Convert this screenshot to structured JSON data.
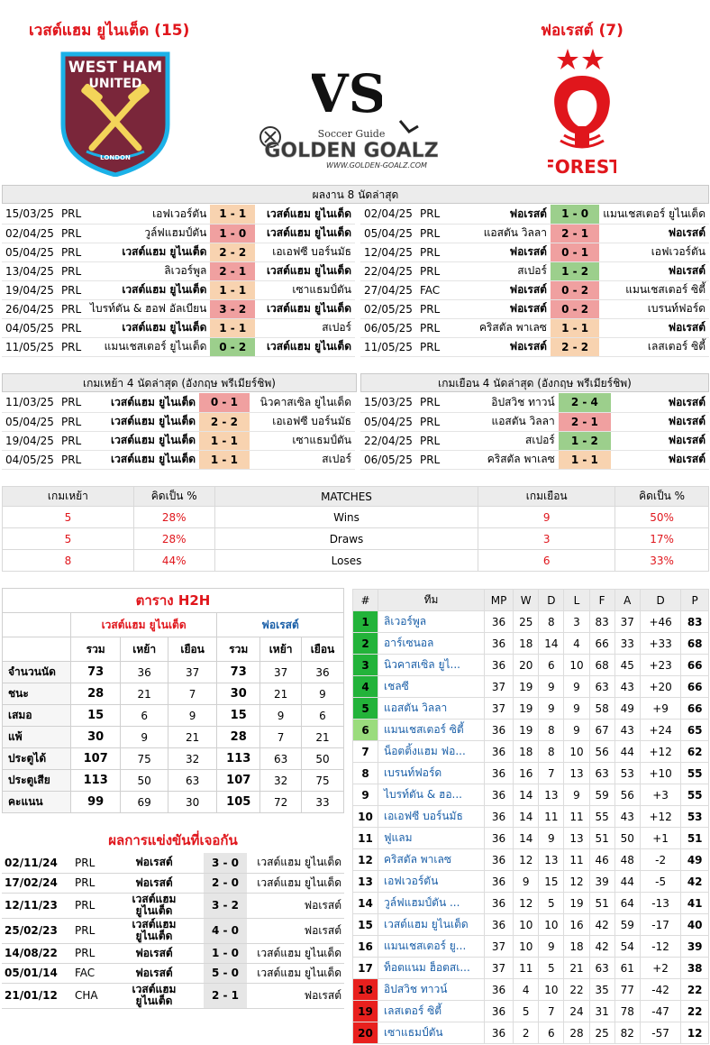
{
  "header": {
    "home_title": "เวสต์แฮม ยูไนเต็ด (15)",
    "away_title": "ฟอเรสต์ (7)",
    "vs": "VS",
    "site_logo_top": "Soccer Guide",
    "site_logo_main": "GOLDEN GOALZ",
    "site_logo_url": "WWW.GOLDEN-GOALZ.COM",
    "home_crest_text_1": "WEST HAM",
    "home_crest_text_2": "UNITED",
    "home_crest_text_3": "LONDON",
    "away_crest_text": "FOREST"
  },
  "colors": {
    "accent_red": "#e0161c",
    "win": "#9ccf8c",
    "draw": "#f8d3b0",
    "loss": "#f0a0a0",
    "west_ham": "#7a263a",
    "forest": "#e0161c"
  },
  "last8": {
    "title": "ผลงาน 8 นัดล่าสุด",
    "home": [
      {
        "date": "15/03/25",
        "comp": "PRL",
        "home": "เอฟเวอร์ตัน",
        "score": "1 - 1",
        "away": "เวสต์แฮม ยูไนเต็ด",
        "res": "d",
        "hb": false,
        "ab": true
      },
      {
        "date": "02/04/25",
        "comp": "PRL",
        "home": "วูล์ฟแฮมป์ตัน",
        "score": "1 - 0",
        "away": "เวสต์แฮม ยูไนเต็ด",
        "res": "l",
        "hb": false,
        "ab": true
      },
      {
        "date": "05/04/25",
        "comp": "PRL",
        "home": "เวสต์แฮม ยูไนเต็ด",
        "score": "2 - 2",
        "away": "เอเอฟซี บอร์นมัธ",
        "res": "d",
        "hb": true,
        "ab": false
      },
      {
        "date": "13/04/25",
        "comp": "PRL",
        "home": "ลิเวอร์พูล",
        "score": "2 - 1",
        "away": "เวสต์แฮม ยูไนเต็ด",
        "res": "l",
        "hb": false,
        "ab": true
      },
      {
        "date": "19/04/25",
        "comp": "PRL",
        "home": "เวสต์แฮม ยูไนเต็ด",
        "score": "1 - 1",
        "away": "เซาแธมป์ตัน",
        "res": "d",
        "hb": true,
        "ab": false
      },
      {
        "date": "26/04/25",
        "comp": "PRL",
        "home": "ไบรท์ตัน & ฮอฟ อัลเบียน",
        "score": "3 - 2",
        "away": "เวสต์แฮม ยูไนเต็ด",
        "res": "l",
        "hb": false,
        "ab": true
      },
      {
        "date": "04/05/25",
        "comp": "PRL",
        "home": "เวสต์แฮม ยูไนเต็ด",
        "score": "1 - 1",
        "away": "สเปอร์",
        "res": "d",
        "hb": true,
        "ab": false
      },
      {
        "date": "11/05/25",
        "comp": "PRL",
        "home": "แมนเชสเตอร์ ยูไนเต็ด",
        "score": "0 - 2",
        "away": "เวสต์แฮม ยูไนเต็ด",
        "res": "w",
        "hb": false,
        "ab": true
      }
    ],
    "away": [
      {
        "date": "02/04/25",
        "comp": "PRL",
        "home": "ฟอเรสต์",
        "score": "1 - 0",
        "away": "แมนเชสเตอร์ ยูไนเต็ด",
        "res": "w",
        "hb": true,
        "ab": false
      },
      {
        "date": "05/04/25",
        "comp": "PRL",
        "home": "แอสตัน วิลลา",
        "score": "2 - 1",
        "away": "ฟอเรสต์",
        "res": "l",
        "hb": false,
        "ab": true
      },
      {
        "date": "12/04/25",
        "comp": "PRL",
        "home": "ฟอเรสต์",
        "score": "0 - 1",
        "away": "เอฟเวอร์ตัน",
        "res": "l",
        "hb": true,
        "ab": false
      },
      {
        "date": "22/04/25",
        "comp": "PRL",
        "home": "สเปอร์",
        "score": "1 - 2",
        "away": "ฟอเรสต์",
        "res": "w",
        "hb": false,
        "ab": true
      },
      {
        "date": "27/04/25",
        "comp": "FAC",
        "home": "ฟอเรสต์",
        "score": "0 - 2",
        "away": "แมนเชสเตอร์ ซิตี้",
        "res": "l",
        "hb": true,
        "ab": false
      },
      {
        "date": "02/05/25",
        "comp": "PRL",
        "home": "ฟอเรสต์",
        "score": "0 - 2",
        "away": "เบรนท์ฟอร์ด",
        "res": "l",
        "hb": true,
        "ab": false
      },
      {
        "date": "06/05/25",
        "comp": "PRL",
        "home": "คริสตัล พาเลซ",
        "score": "1 - 1",
        "away": "ฟอเรสต์",
        "res": "d",
        "hb": false,
        "ab": true
      },
      {
        "date": "11/05/25",
        "comp": "PRL",
        "home": "ฟอเรสต์",
        "score": "2 - 2",
        "away": "เลสเตอร์ ซิตี้",
        "res": "d",
        "hb": true,
        "ab": false
      }
    ]
  },
  "last4": {
    "home_title": "เกมเหย้า 4 นัดล่าสุด (อังกฤษ พรีเมียร์ชิพ)",
    "away_title": "เกมเยือน 4 นัดล่าสุด (อังกฤษ พรีเมียร์ชิพ)",
    "home": [
      {
        "date": "11/03/25",
        "comp": "PRL",
        "home": "เวสต์แฮม ยูไนเต็ด",
        "score": "0 - 1",
        "away": "นิวคาสเซิล ยูไนเต็ด",
        "res": "l",
        "hb": true,
        "ab": false
      },
      {
        "date": "05/04/25",
        "comp": "PRL",
        "home": "เวสต์แฮม ยูไนเต็ด",
        "score": "2 - 2",
        "away": "เอเอฟซี บอร์นมัธ",
        "res": "d",
        "hb": true,
        "ab": false
      },
      {
        "date": "19/04/25",
        "comp": "PRL",
        "home": "เวสต์แฮม ยูไนเต็ด",
        "score": "1 - 1",
        "away": "เซาแธมป์ตัน",
        "res": "d",
        "hb": true,
        "ab": false
      },
      {
        "date": "04/05/25",
        "comp": "PRL",
        "home": "เวสต์แฮม ยูไนเต็ด",
        "score": "1 - 1",
        "away": "สเปอร์",
        "res": "d",
        "hb": true,
        "ab": false
      }
    ],
    "away": [
      {
        "date": "15/03/25",
        "comp": "PRL",
        "home": "อิปสวิช ทาวน์",
        "score": "2 - 4",
        "away": "ฟอเรสต์",
        "res": "w",
        "hb": false,
        "ab": true
      },
      {
        "date": "05/04/25",
        "comp": "PRL",
        "home": "แอสตัน วิลลา",
        "score": "2 - 1",
        "away": "ฟอเรสต์",
        "res": "l",
        "hb": false,
        "ab": true
      },
      {
        "date": "22/04/25",
        "comp": "PRL",
        "home": "สเปอร์",
        "score": "1 - 2",
        "away": "ฟอเรสต์",
        "res": "w",
        "hb": false,
        "ab": true
      },
      {
        "date": "06/05/25",
        "comp": "PRL",
        "home": "คริสตัล พาเลซ",
        "score": "1 - 1",
        "away": "ฟอเรสต์",
        "res": "d",
        "hb": false,
        "ab": true
      }
    ]
  },
  "stats": {
    "h_home": "เกมเหย้า",
    "h_pct": "คิดเป็น %",
    "h_matches": "MATCHES",
    "h_away": "เกมเยือน",
    "rows": [
      {
        "label": "Wins",
        "hn": "5",
        "hp": "28%",
        "an": "9",
        "ap": "50%"
      },
      {
        "label": "Draws",
        "hn": "5",
        "hp": "28%",
        "an": "3",
        "ap": "17%"
      },
      {
        "label": "Loses",
        "hn": "8",
        "hp": "44%",
        "an": "6",
        "ap": "33%"
      }
    ]
  },
  "h2h": {
    "title": "ตาราง H2H",
    "home_team": "เวสต์แฮม ยูไนเต็ด",
    "away_team": "ฟอเรสต์",
    "cols": [
      "รวม",
      "เหย้า",
      "เยือน",
      "รวม",
      "เหย้า",
      "เยือน"
    ],
    "rows": [
      {
        "label": "จำนวนนัด",
        "v": [
          "73",
          "36",
          "37",
          "73",
          "37",
          "36"
        ]
      },
      {
        "label": "ชนะ",
        "v": [
          "28",
          "21",
          "7",
          "30",
          "21",
          "9"
        ]
      },
      {
        "label": "เสมอ",
        "v": [
          "15",
          "6",
          "9",
          "15",
          "9",
          "6"
        ]
      },
      {
        "label": "แพ้",
        "v": [
          "30",
          "9",
          "21",
          "28",
          "7",
          "21"
        ]
      },
      {
        "label": "ประตูได้",
        "v": [
          "107",
          "75",
          "32",
          "113",
          "63",
          "50"
        ]
      },
      {
        "label": "ประตูเสีย",
        "v": [
          "113",
          "50",
          "63",
          "107",
          "32",
          "75"
        ]
      },
      {
        "label": "คะแนน",
        "v": [
          "99",
          "69",
          "30",
          "105",
          "72",
          "33"
        ]
      }
    ]
  },
  "meetings": {
    "title": "ผลการแข่งขันที่เจอกัน",
    "rows": [
      {
        "date": "02/11/24",
        "comp": "PRL",
        "home": "ฟอเรสต์",
        "score": "3 - 0",
        "away": "เวสต์แฮม ยูไนเต็ด"
      },
      {
        "date": "17/02/24",
        "comp": "PRL",
        "home": "ฟอเรสต์",
        "score": "2 - 0",
        "away": "เวสต์แฮม ยูไนเต็ด"
      },
      {
        "date": "12/11/23",
        "comp": "PRL",
        "home": "เวสต์แฮม ยูไนเต็ด",
        "score": "3 - 2",
        "away": "ฟอเรสต์"
      },
      {
        "date": "25/02/23",
        "comp": "PRL",
        "home": "เวสต์แฮม ยูไนเต็ด",
        "score": "4 - 0",
        "away": "ฟอเรสต์"
      },
      {
        "date": "14/08/22",
        "comp": "PRL",
        "home": "ฟอเรสต์",
        "score": "1 - 0",
        "away": "เวสต์แฮม ยูไนเต็ด"
      },
      {
        "date": "05/01/14",
        "comp": "FAC",
        "home": "ฟอเรสต์",
        "score": "5 - 0",
        "away": "เวสต์แฮม ยูไนเต็ด"
      },
      {
        "date": "21/01/12",
        "comp": "CHA",
        "home": "เวสต์แฮม ยูไนเต็ด",
        "score": "2 - 1",
        "away": "ฟอเรสต์"
      }
    ]
  },
  "league": {
    "headers": [
      "#",
      "ทีม",
      "MP",
      "W",
      "D",
      "L",
      "F",
      "A",
      "D",
      "P"
    ],
    "rows": [
      {
        "pos": "1",
        "team": "ลิเวอร์พูล",
        "mp": "36",
        "w": "25",
        "d": "8",
        "l": "3",
        "f": "83",
        "a": "37",
        "gd": "+46",
        "p": "83",
        "z": "cl"
      },
      {
        "pos": "2",
        "team": "อาร์เซนอล",
        "mp": "36",
        "w": "18",
        "d": "14",
        "l": "4",
        "f": "66",
        "a": "33",
        "gd": "+33",
        "p": "68",
        "z": "cl"
      },
      {
        "pos": "3",
        "team": "นิวคาสเซิล ยูไ...",
        "mp": "36",
        "w": "20",
        "d": "6",
        "l": "10",
        "f": "68",
        "a": "45",
        "gd": "+23",
        "p": "66",
        "z": "cl"
      },
      {
        "pos": "4",
        "team": "เชลซี",
        "mp": "37",
        "w": "19",
        "d": "9",
        "l": "9",
        "f": "63",
        "a": "43",
        "gd": "+20",
        "p": "66",
        "z": "cl"
      },
      {
        "pos": "5",
        "team": "แอสตัน วิลลา",
        "mp": "37",
        "w": "19",
        "d": "9",
        "l": "9",
        "f": "58",
        "a": "49",
        "gd": "+9",
        "p": "66",
        "z": "cl"
      },
      {
        "pos": "6",
        "team": "แมนเชสเตอร์ ซิตี้",
        "mp": "36",
        "w": "19",
        "d": "8",
        "l": "9",
        "f": "67",
        "a": "43",
        "gd": "+24",
        "p": "65",
        "z": "ecl"
      },
      {
        "pos": "7",
        "team": "น็อตติ้งแฮม ฟอ...",
        "mp": "36",
        "w": "18",
        "d": "8",
        "l": "10",
        "f": "56",
        "a": "44",
        "gd": "+12",
        "p": "62",
        "z": ""
      },
      {
        "pos": "8",
        "team": "เบรนท์ฟอร์ด",
        "mp": "36",
        "w": "16",
        "d": "7",
        "l": "13",
        "f": "63",
        "a": "53",
        "gd": "+10",
        "p": "55",
        "z": ""
      },
      {
        "pos": "9",
        "team": "ไบรท์ตัน & ฮอ...",
        "mp": "36",
        "w": "14",
        "d": "13",
        "l": "9",
        "f": "59",
        "a": "56",
        "gd": "+3",
        "p": "55",
        "z": ""
      },
      {
        "pos": "10",
        "team": "เอเอฟซี บอร์นมัธ",
        "mp": "36",
        "w": "14",
        "d": "11",
        "l": "11",
        "f": "55",
        "a": "43",
        "gd": "+12",
        "p": "53",
        "z": ""
      },
      {
        "pos": "11",
        "team": "ฟูแลม",
        "mp": "36",
        "w": "14",
        "d": "9",
        "l": "13",
        "f": "51",
        "a": "50",
        "gd": "+1",
        "p": "51",
        "z": ""
      },
      {
        "pos": "12",
        "team": "คริสตัล พาเลซ",
        "mp": "36",
        "w": "12",
        "d": "13",
        "l": "11",
        "f": "46",
        "a": "48",
        "gd": "-2",
        "p": "49",
        "z": ""
      },
      {
        "pos": "13",
        "team": "เอฟเวอร์ตัน",
        "mp": "36",
        "w": "9",
        "d": "15",
        "l": "12",
        "f": "39",
        "a": "44",
        "gd": "-5",
        "p": "42",
        "z": ""
      },
      {
        "pos": "14",
        "team": "วูล์ฟแฮมป์ตัน ...",
        "mp": "36",
        "w": "12",
        "d": "5",
        "l": "19",
        "f": "51",
        "a": "64",
        "gd": "-13",
        "p": "41",
        "z": ""
      },
      {
        "pos": "15",
        "team": "เวสต์แฮม ยูไนเต็ด",
        "mp": "36",
        "w": "10",
        "d": "10",
        "l": "16",
        "f": "42",
        "a": "59",
        "gd": "-17",
        "p": "40",
        "z": ""
      },
      {
        "pos": "16",
        "team": "แมนเชสเตอร์ ยู...",
        "mp": "37",
        "w": "10",
        "d": "9",
        "l": "18",
        "f": "42",
        "a": "54",
        "gd": "-12",
        "p": "39",
        "z": ""
      },
      {
        "pos": "17",
        "team": "ท็อตแนม ฮ็อตสเ...",
        "mp": "37",
        "w": "11",
        "d": "5",
        "l": "21",
        "f": "63",
        "a": "61",
        "gd": "+2",
        "p": "38",
        "z": ""
      },
      {
        "pos": "18",
        "team": "อิปสวิช ทาวน์",
        "mp": "36",
        "w": "4",
        "d": "10",
        "l": "22",
        "f": "35",
        "a": "77",
        "gd": "-42",
        "p": "22",
        "z": "rel"
      },
      {
        "pos": "19",
        "team": "เลสเตอร์ ซิตี้",
        "mp": "36",
        "w": "5",
        "d": "7",
        "l": "24",
        "f": "31",
        "a": "78",
        "gd": "-47",
        "p": "22",
        "z": "rel"
      },
      {
        "pos": "20",
        "team": "เซาแธมป์ตัน",
        "mp": "36",
        "w": "2",
        "d": "6",
        "l": "28",
        "f": "25",
        "a": "82",
        "gd": "-57",
        "p": "12",
        "z": "rel"
      }
    ]
  }
}
